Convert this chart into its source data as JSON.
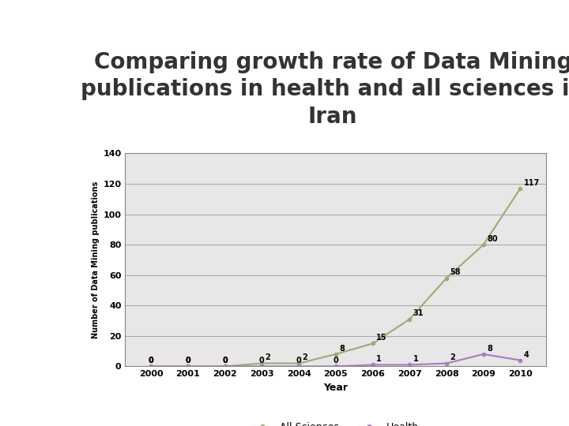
{
  "title": "Comparing growth rate of Data Mining\npublications in health and all sciences in\nIran",
  "years": [
    2000,
    2001,
    2002,
    2003,
    2004,
    2005,
    2006,
    2007,
    2008,
    2009,
    2010
  ],
  "all_sciences": [
    0,
    0,
    0,
    2,
    2,
    8,
    15,
    31,
    58,
    80,
    117
  ],
  "health": [
    0,
    0,
    0,
    0,
    0,
    0,
    1,
    1,
    2,
    8,
    4
  ],
  "all_sciences_color": "#9aaa7a",
  "health_color": "#a87cc0",
  "xlabel": "Year",
  "ylabel": "Number of Data Mining publications",
  "ylim": [
    0,
    140
  ],
  "yticks": [
    0,
    20,
    40,
    60,
    80,
    100,
    120,
    140
  ],
  "bg_color": "#ffffff",
  "left_panel_color": "#c8bcd8",
  "plot_bg_color": "#d8d8d8",
  "inner_plot_bg": "#e8e6e6",
  "title_fontsize": 20,
  "label_fontsize": 8,
  "annotation_fontsize": 7,
  "ylabel_fontsize": 7
}
